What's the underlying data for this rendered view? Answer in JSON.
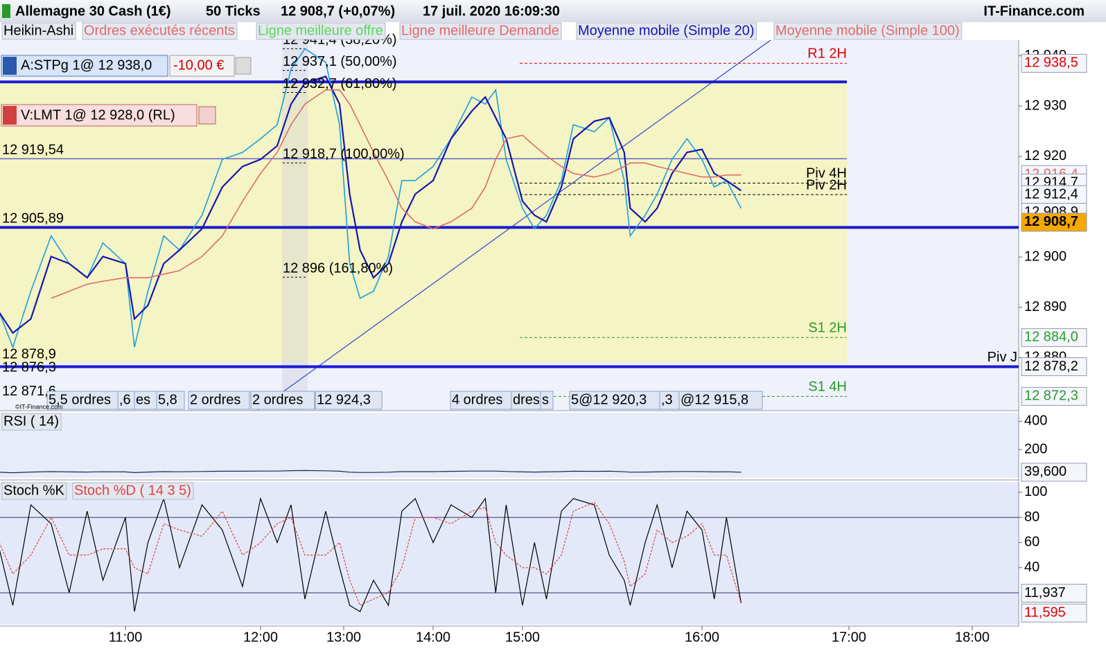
{
  "header": {
    "instrument": "Allemagne 30 Cash (1€)",
    "interval": "50 Ticks",
    "quote": "12 908,7 (+0,07%)",
    "datetime": "17 juil. 2020 16:09:30",
    "brand": "IT-Finance.com",
    "copyright": "©IT-Finance.com"
  },
  "order_tags": {
    "stop": "A:STPg 1@ 12 938,0",
    "stop_pnl": "-10,00 €",
    "limit": "V:LMT 1@ 12 928,0 (RL)"
  },
  "order_boxes": [
    "5,5 ordres",
    ",6",
    "es",
    "5,8",
    "2 ordres",
    "2 ordres",
    "12 924,3",
    "4 ordres",
    "dres",
    "s",
    "5@12 920,3",
    ",3",
    "@12 915,8"
  ],
  "chart_data": [
    {
      "type": "line",
      "x": [
        "10:04",
        "10:10",
        "10:18",
        "10:27",
        "10:35",
        "10:43",
        "10:50",
        "11:00",
        "11:04",
        "11:10",
        "11:17",
        "11:24",
        "11:34",
        "11:43",
        "11:52",
        "12:00",
        "12:12",
        "12:22",
        "12:32",
        "12:47",
        "12:57",
        "13:04",
        "13:11",
        "13:20",
        "13:30",
        "13:39",
        "13:48",
        "14:00",
        "14:12",
        "14:26",
        "14:35",
        "14:42",
        "14:49",
        "15:00",
        "15:04",
        "15:08",
        "15:13",
        "15:17",
        "15:24",
        "15:29",
        "15:34",
        "15:36",
        "15:41",
        "15:45",
        "15:50",
        "15:55",
        "16:00",
        "16:05",
        "16:10",
        "16:16"
      ],
      "series": [
        {
          "name": "Heikin-Ashi",
          "color": "#1a9fe0",
          "values": [
            12889.0,
            12882.1,
            12893.2,
            12904.2,
            12898.7,
            12895.9,
            12902.8,
            12898.7,
            12882.1,
            12893.2,
            12904.2,
            12901.4,
            12908.3,
            12919.4,
            12920.8,
            12923.5,
            12926.3,
            12937.3,
            12941.4,
            12938.7,
            12926.3,
            12898.7,
            12891.8,
            12893.2,
            12900.1,
            12915.2,
            12915.2,
            12918.0,
            12923.5,
            12931.8,
            12930.4,
            12933.2,
            12919.4,
            12909.7,
            12905.6,
            12908.3,
            12915.2,
            12926.3,
            12924.9,
            12927.7,
            12915.2,
            12904.2,
            12908.3,
            12912.5,
            12919.4,
            12923.5,
            12919.4,
            12913.9,
            12915.2,
            12909.7
          ]
        },
        {
          "name": "Moyenne mobile (Simple 20)",
          "color": "#1515b0",
          "values": [
            12889.0,
            12884.9,
            12887.7,
            12900.1,
            12898.7,
            12895.9,
            12900.1,
            12898.7,
            12887.7,
            12890.4,
            12898.7,
            12901.4,
            12905.6,
            12913.9,
            12918.0,
            12919.4,
            12922.1,
            12930.4,
            12934.6,
            12935.9,
            12930.4,
            12912.5,
            12901.4,
            12895.9,
            12898.7,
            12907.0,
            12912.5,
            12915.2,
            12923.5,
            12929.0,
            12931.8,
            12927.7,
            12923.5,
            12911.1,
            12908.3,
            12907.0,
            12913.9,
            12923.5,
            12927.0,
            12927.7,
            12920.8,
            12909.7,
            12907.0,
            12909.7,
            12916.6,
            12920.8,
            12921.4,
            12916.6,
            12915.2,
            12913.2
          ]
        },
        {
          "name": "Moyenne mobile (Simple 100)",
          "color": "#e06a6a",
          "values": [
            null,
            null,
            null,
            12891.8,
            12893.2,
            12894.6,
            12895.2,
            12895.9,
            12895.9,
            12895.9,
            12896.6,
            12897.3,
            12900.1,
            12904.2,
            12911.1,
            12916.6,
            12920.8,
            12926.3,
            12930.4,
            12933.2,
            12933.2,
            12930.4,
            12926.3,
            12920.8,
            12915.2,
            12909.7,
            12907.0,
            12905.6,
            12907.0,
            12909.7,
            12913.9,
            12919.4,
            12923.5,
            12924.2,
            12922.1,
            12920.1,
            12918.0,
            12916.6,
            12915.9,
            12916.6,
            12918.0,
            12918.7,
            12918.7,
            12918.0,
            12917.3,
            12916.6,
            12915.9,
            12915.9,
            12916.3,
            12916.3
          ]
        }
      ],
      "overlays": [
        {
          "name": "Ordres exécutés récents",
          "color": "#e06a6a"
        },
        {
          "name": "Ligne meilleure offre",
          "color": "#5cd65c"
        },
        {
          "name": "Ligne meilleure Demande",
          "color": "#e06a6a"
        }
      ],
      "ylim": [
        12869.6,
        12943.1
      ],
      "yticks": [
        {
          "value": 12940,
          "label": "12 940"
        },
        {
          "value": 12930,
          "label": "12 930"
        },
        {
          "value": 12920,
          "label": "12 920"
        },
        {
          "value": 12900,
          "label": "12 900"
        },
        {
          "value": 12890,
          "label": "12 890"
        },
        {
          "value": 12880,
          "label": "12 880"
        }
      ],
      "levels": [
        {
          "name": "R1 2H",
          "value": 12938.5,
          "color": "#e00000",
          "style": "dashed"
        },
        {
          "name": "Piv 4H",
          "value": 12914.7,
          "color": "#000000",
          "style": "dashed"
        },
        {
          "name": "Piv 2H",
          "value": 12912.4,
          "color": "#000000",
          "style": "dashed"
        },
        {
          "name": "S1 2H",
          "value": 12884.0,
          "color": "#2a9a2a",
          "style": "dashed"
        },
        {
          "name": "S1 4H",
          "value": 12872.3,
          "color": "#2a9a2a",
          "style": "dashed"
        },
        {
          "name": "Piv J",
          "value": 12878.2,
          "color": "#1a1acc",
          "style": "solid"
        }
      ],
      "thick_lines": [
        12934.8
      ],
      "marked_levels": [
        {
          "value": 12919.54,
          "label": "12 919,54",
          "line": "thin"
        },
        {
          "value": 12905.89,
          "label": "12 905,89",
          "line": "thick"
        },
        {
          "value": 12878.9,
          "label": "12 878,9"
        },
        {
          "value": 12876.3,
          "label": "12 876,3"
        },
        {
          "value": 12871.6,
          "label": "12 871,6"
        }
      ],
      "fibonacci": [
        {
          "value": 12941.4,
          "label": "12 941,4 (38,20%)"
        },
        {
          "value": 12937.1,
          "label": "12 937,1 (50,00%)"
        },
        {
          "value": 12932.7,
          "label": "12 932,7 (61,80%)"
        },
        {
          "value": 12918.7,
          "label": "12 918,7 (100,00%)"
        },
        {
          "value": 12896,
          "label": "12 896 (161,80%)"
        }
      ],
      "price_labels": [
        {
          "value": 12938.5,
          "label": "12 938,5",
          "color": "#e00000"
        },
        {
          "value": 12916.4,
          "label": "12 916,4",
          "color": "#e06a6a"
        },
        {
          "value": 12914.7,
          "label": "12 914,7",
          "color": "#000000"
        },
        {
          "value": 12912.4,
          "label": "12 912,4",
          "color": "#000000"
        },
        {
          "value": 12908.9,
          "label": "12 908,9",
          "color": "#000000"
        },
        {
          "value": 12884.0,
          "label": "12 884,0",
          "color": "#2a9a2a"
        },
        {
          "value": 12878.2,
          "label": "12 878,2",
          "color": "#000000"
        },
        {
          "value": 12872.3,
          "label": "12 872,3",
          "color": "#2a9a2a"
        },
        {
          "value": 12908.7,
          "label": "12 908,7",
          "color": "#000000",
          "highlight": "#f5a800"
        }
      ]
    },
    {
      "type": "line",
      "x": [
        "10:04",
        "10:10",
        "10:18",
        "10:27",
        "10:35",
        "10:43",
        "10:50",
        "11:00",
        "11:04",
        "11:10",
        "11:17",
        "11:24",
        "11:34",
        "11:43",
        "11:52",
        "12:00",
        "12:12",
        "12:22",
        "12:32",
        "12:47",
        "12:57",
        "13:04",
        "13:11",
        "13:20",
        "13:30",
        "13:39",
        "13:48",
        "14:00",
        "14:12",
        "14:26",
        "14:35",
        "14:42",
        "14:49",
        "15:00",
        "15:04",
        "15:08",
        "15:13",
        "15:17",
        "15:24",
        "15:29",
        "15:34",
        "15:36",
        "15:41",
        "15:45",
        "15:50",
        "15:55",
        "16:00",
        "16:05",
        "16:10",
        "16:16"
      ],
      "series": [
        {
          "name": "RSI ( 14)",
          "color": "#20205a",
          "values": [
            40,
            36,
            41,
            44,
            42,
            41,
            43,
            42,
            37,
            41,
            44,
            43,
            45,
            47,
            47,
            48,
            48,
            51,
            52,
            50,
            47,
            40,
            38,
            38,
            40,
            44,
            44,
            44,
            46,
            48,
            48,
            48,
            45,
            42,
            41,
            42,
            44,
            47,
            46,
            47,
            43,
            40,
            41,
            42,
            44,
            45,
            44,
            42,
            43,
            39.6
          ]
        }
      ],
      "ylim": [
        0,
        460
      ],
      "yticks": [
        200,
        400
      ],
      "last_labels": [
        {
          "value": 39.6,
          "label": "39,600",
          "color": "#000000"
        }
      ]
    },
    {
      "type": "line",
      "x": [
        "10:04",
        "10:10",
        "10:18",
        "10:27",
        "10:35",
        "10:43",
        "10:50",
        "11:00",
        "11:04",
        "11:10",
        "11:17",
        "11:24",
        "11:34",
        "11:43",
        "11:52",
        "12:00",
        "12:12",
        "12:22",
        "12:32",
        "12:47",
        "12:57",
        "13:04",
        "13:11",
        "13:20",
        "13:30",
        "13:39",
        "13:48",
        "14:00",
        "14:12",
        "14:26",
        "14:35",
        "14:42",
        "14:49",
        "15:00",
        "15:04",
        "15:08",
        "15:13",
        "15:17",
        "15:24",
        "15:29",
        "15:34",
        "15:36",
        "15:41",
        "15:45",
        "15:50",
        "15:55",
        "16:00",
        "16:05",
        "16:10",
        "16:16"
      ],
      "series": [
        {
          "name": "Stoch %K",
          "color": "#000000",
          "style": "solid",
          "values": [
            55,
            10,
            90,
            75,
            20,
            85,
            30,
            80,
            5,
            60,
            95,
            40,
            90,
            70,
            25,
            95,
            60,
            90,
            15,
            85,
            40,
            10,
            5,
            30,
            10,
            85,
            95,
            60,
            90,
            80,
            95,
            20,
            90,
            10,
            60,
            15,
            85,
            95,
            90,
            50,
            30,
            10,
            60,
            90,
            40,
            85,
            70,
            15,
            80,
            11.937
          ]
        },
        {
          "name": "Stoch %D ( 14 3 5)",
          "color": "#e04040",
          "style": "dashed",
          "values": [
            60,
            35,
            50,
            80,
            50,
            50,
            55,
            55,
            40,
            35,
            75,
            70,
            65,
            85,
            50,
            60,
            75,
            80,
            50,
            50,
            60,
            30,
            10,
            15,
            20,
            40,
            80,
            80,
            75,
            85,
            88,
            60,
            50,
            40,
            40,
            35,
            50,
            85,
            92,
            75,
            45,
            25,
            35,
            70,
            60,
            65,
            75,
            50,
            50,
            11.595
          ]
        }
      ],
      "ylim": [
        -5.4,
        108.2
      ],
      "yticks": [
        40,
        60,
        80,
        100
      ],
      "hlines": [
        80,
        20
      ],
      "last_labels": [
        {
          "value": 11.937,
          "label": "11,937",
          "color": "#000000"
        },
        {
          "value": 11.595,
          "label": "11,595",
          "color": "#e00000"
        }
      ],
      "xticks": [
        "11:00",
        "12:00",
        "13:00",
        "14:00",
        "15:00",
        "16:00",
        "17:00",
        "18:00"
      ]
    }
  ]
}
